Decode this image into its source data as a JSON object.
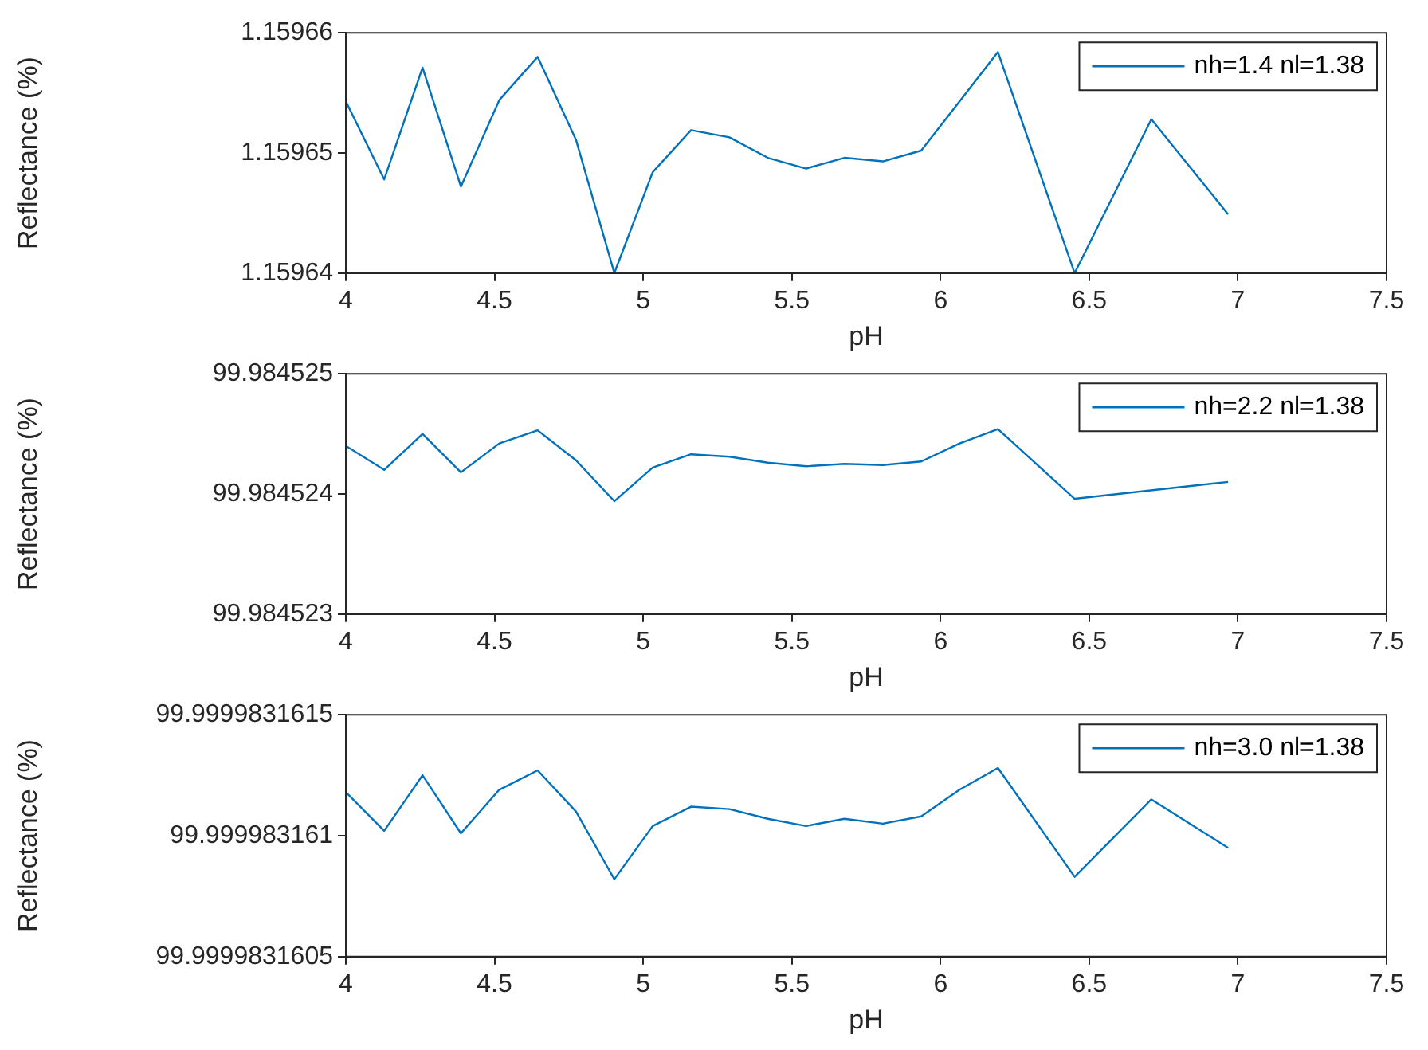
{
  "chart_data": [
    {
      "type": "line",
      "xlabel": "pH",
      "ylabel": "Reflectance (%)",
      "legend": "top right",
      "grid": false,
      "x": [
        4,
        4.129,
        4.258,
        4.387,
        4.516,
        4.645,
        4.774,
        4.903,
        5.032,
        5.161,
        5.29,
        5.419,
        5.548,
        5.677,
        5.806,
        5.935,
        6.064,
        6.193,
        6.322,
        6.451,
        6.58,
        6.709,
        6.838,
        6.967
      ],
      "series": [
        {
          "name": "nh=1.4 nl=1.38",
          "color": "#0072bd",
          "values": [
            1.1596543,
            1.1596478,
            1.1596571,
            1.1596472,
            1.1596544,
            1.159658,
            1.1596511,
            1.15964,
            1.1596484,
            1.1596519,
            1.1596513,
            1.1596496,
            1.1596487,
            1.1596496,
            1.1596493,
            1.1596502,
            1.1596543,
            1.1596584,
            null,
            1.15964,
            null,
            1.1596528,
            null,
            1.1596449
          ]
        }
      ],
      "xlim": [
        4,
        7.5
      ],
      "xticks": [
        4,
        4.5,
        5,
        5.5,
        6,
        6.5,
        7,
        7.5
      ],
      "ylim": [
        1.15964,
        1.15966
      ],
      "yticks": [
        1.15964,
        1.15965,
        1.15966
      ]
    },
    {
      "type": "line",
      "xlabel": "pH",
      "ylabel": "Reflectance (%)",
      "legend": "top right",
      "grid": false,
      "x": [
        4,
        4.129,
        4.258,
        4.387,
        4.516,
        4.645,
        4.774,
        4.903,
        5.032,
        5.161,
        5.29,
        5.419,
        5.548,
        5.677,
        5.806,
        5.935,
        6.064,
        6.193,
        6.322,
        6.451,
        6.58,
        6.709,
        6.838,
        6.967
      ],
      "series": [
        {
          "name": "nh=2.2 nl=1.38",
          "color": "#0072bd",
          "values": [
            99.9845244,
            99.9845242,
            99.9845245,
            99.98452418,
            99.98452442,
            99.98452453,
            99.98452428,
            99.98452394,
            99.98452422,
            99.98452433,
            99.98452431,
            99.98452426,
            99.98452423,
            99.98452425,
            99.98452424,
            99.98452427,
            99.98452442,
            99.98452454,
            null,
            99.98452396,
            null,
            null,
            null,
            99.9845241
          ]
        }
      ],
      "xlim": [
        4,
        7.5
      ],
      "xticks": [
        4,
        4.5,
        5,
        5.5,
        6,
        6.5,
        7,
        7.5
      ],
      "ylim": [
        99.984523,
        99.984525
      ],
      "yticks": [
        99.984523,
        99.984524,
        99.984525
      ]
    },
    {
      "type": "line",
      "xlabel": "pH",
      "ylabel": "Reflectance (%)",
      "legend": "top right",
      "grid": false,
      "x": [
        4,
        4.129,
        4.258,
        4.387,
        4.516,
        4.645,
        4.774,
        4.903,
        5.032,
        5.161,
        5.29,
        5.419,
        5.548,
        5.677,
        5.806,
        5.935,
        6.064,
        6.193,
        6.322,
        6.451,
        6.58,
        6.709,
        6.838,
        6.967
      ],
      "series": [
        {
          "name": "nh=3.0 nl=1.38",
          "color": "#0072bd",
          "values": [
            99.99998316118,
            99.99998316102,
            99.99998316125,
            99.99998316101,
            99.99998316119,
            99.99998316127,
            99.9999831611,
            99.99998316082,
            99.99998316104,
            99.99998316112,
            99.99998316111,
            99.99998316107,
            99.99998316104,
            99.99998316107,
            99.99998316105,
            99.99998316108,
            99.99998316119,
            99.99998316128,
            null,
            99.99998316083,
            null,
            99.99998316115,
            null,
            99.99998316095
          ]
        }
      ],
      "xlim": [
        4,
        7.5
      ],
      "xticks": [
        4,
        4.5,
        5,
        5.5,
        6,
        6.5,
        7,
        7.5
      ],
      "ylim": [
        99.9999831605,
        99.9999831615
      ],
      "yticks": [
        99.9999831605,
        99.999983161,
        99.9999831615
      ]
    }
  ]
}
